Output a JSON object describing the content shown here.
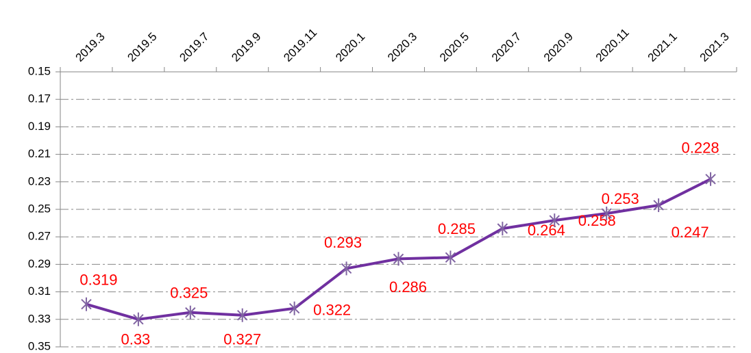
{
  "chart_data": {
    "type": "line",
    "categories": [
      "2019.3",
      "2019.5",
      "2019.7",
      "2019.9",
      "2019.11",
      "2020.1",
      "2020.3",
      "2020.5",
      "2020.7",
      "2020.9",
      "2020.11",
      "2021.1",
      "2021.3"
    ],
    "series": [
      {
        "color": "#7030a0",
        "marker_color": "#8064a2",
        "values": [
          0.319,
          0.33,
          0.325,
          0.327,
          0.322,
          0.293,
          0.286,
          0.285,
          0.264,
          0.258,
          0.253,
          0.247,
          0.228
        ]
      }
    ],
    "ylim": [
      0.15,
      0.35
    ],
    "y_inverted": true,
    "yticks": [
      0.15,
      0.17,
      0.19,
      0.21,
      0.23,
      0.25,
      0.27,
      0.29,
      0.31,
      0.33,
      0.35
    ],
    "grid": true,
    "label_color": "#ff0000"
  }
}
